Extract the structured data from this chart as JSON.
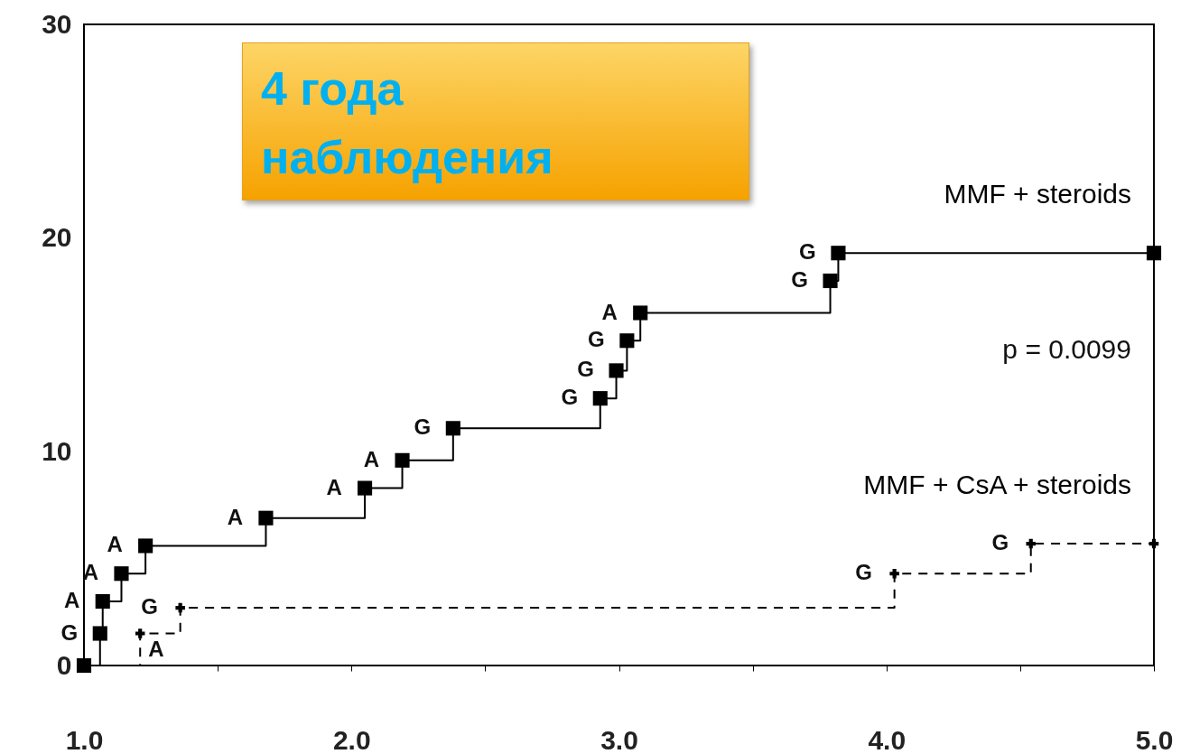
{
  "chart_data": {
    "type": "step",
    "annotations": [
      "4 года наблюдения",
      "p = 0.0099",
      {
        "text": "G",
        "x": 1.06,
        "y": 1.5
      },
      {
        "text": "A",
        "x": 1.07,
        "y": 3.0
      },
      {
        "text": "A",
        "x": 1.14,
        "y": 4.3
      },
      {
        "text": "A",
        "x": 1.23,
        "y": 5.6
      },
      {
        "text": "A",
        "x": 1.68,
        "y": 6.9
      },
      {
        "text": "A",
        "x": 2.05,
        "y": 8.3
      },
      {
        "text": "A",
        "x": 2.19,
        "y": 9.6
      },
      {
        "text": "G",
        "x": 2.38,
        "y": 11.1
      },
      {
        "text": "G",
        "x": 2.93,
        "y": 12.5
      },
      {
        "text": "G",
        "x": 2.99,
        "y": 13.8
      },
      {
        "text": "G",
        "x": 3.03,
        "y": 15.2
      },
      {
        "text": "A",
        "x": 3.08,
        "y": 16.5
      },
      {
        "text": "G",
        "x": 3.79,
        "y": 18.0
      },
      {
        "text": "G",
        "x": 3.82,
        "y": 19.3
      },
      "A",
      {
        "text": "G",
        "x": 1.36,
        "y": 2.7
      },
      {
        "text": "G",
        "x": 4.03,
        "y": 4.3
      },
      {
        "text": "G",
        "x": 4.54,
        "y": 5.7
      }
    ],
    "series": [
      {
        "name": "MMF + steroids",
        "color": "#000000",
        "marker": "square",
        "line_style": "solid",
        "x": [
          1.0,
          1.06,
          1.07,
          1.14,
          1.23,
          1.68,
          2.05,
          2.19,
          2.38,
          2.93,
          2.99,
          3.03,
          3.08,
          3.79,
          3.82,
          5.0
        ],
        "values": [
          0,
          1.5,
          3.0,
          4.3,
          5.6,
          6.9,
          8.3,
          9.6,
          11.1,
          12.5,
          13.8,
          15.2,
          16.5,
          18.0,
          19.3,
          19.3
        ]
      },
      {
        "name": "MMF + CsA + steroids",
        "color": "#000000",
        "marker": "cross",
        "line_style": "dashed",
        "x": [
          1.0,
          1.21,
          1.36,
          4.03,
          4.54,
          5.0
        ],
        "values": [
          0,
          1.5,
          2.7,
          4.3,
          5.7,
          5.7
        ]
      }
    ],
    "xlim": [
      1.0,
      5.0
    ],
    "xticks": [
      {
        "value": 1.0,
        "label": "1.0"
      },
      {
        "value": 1.5,
        "label": null
      },
      {
        "value": 2.0,
        "label": "2.0"
      },
      {
        "value": 2.5,
        "label": null
      },
      {
        "value": 3.0,
        "label": "3.0"
      },
      {
        "value": 3.5,
        "label": null
      },
      {
        "value": 4.0,
        "label": "4.0"
      },
      {
        "value": 4.5,
        "label": null
      },
      {
        "value": 5.0,
        "label": "5.0"
      }
    ],
    "ylim": [
      0,
      30
    ],
    "yticks": [
      0,
      10,
      20,
      30
    ]
  }
}
